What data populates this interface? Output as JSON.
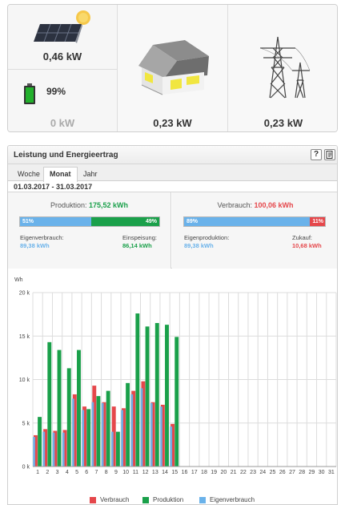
{
  "flow": {
    "pv_power": "0,46 kW",
    "battery_soc": "99%",
    "battery_power": "0 kW",
    "consumption_power": "0,23 kW",
    "grid_power": "0,23 kW",
    "icons": [
      "solar-panel-icon",
      "battery-icon",
      "house-icon",
      "power-pylon-icon"
    ],
    "colors": {
      "battery": "#1fa12a",
      "arrow": "#c9dcb4",
      "house_window": "#f1e640"
    }
  },
  "panel": {
    "title": "Leistung und Energieertrag",
    "help_label": "?",
    "tabs": [
      {
        "label": "Woche",
        "active": false
      },
      {
        "label": "Monat",
        "active": true
      },
      {
        "label": "Jahr",
        "active": false
      }
    ],
    "date_range": "01.03.2017 - 31.03.2017"
  },
  "production": {
    "label": "Produktion:",
    "total": "175,52 kWh",
    "self_pct": "51%",
    "feed_pct": "49%",
    "self_fraction": 0.51,
    "self_label": "Eigenverbrauch:",
    "self_value": "89,38 kWh",
    "feed_label": "Einspeisung:",
    "feed_value": "86,14 kWh"
  },
  "consumption": {
    "label": "Verbrauch:",
    "total": "100,06 kWh",
    "own_pct": "89%",
    "buy_pct": "11%",
    "own_fraction": 0.89,
    "own_label": "Eigenproduktion:",
    "own_value": "89,38 kWh",
    "buy_label": "Zukauf:",
    "buy_value": "10,68 kWh"
  },
  "chart_data": {
    "type": "bar",
    "ylabel": "Wh",
    "ylim": [
      0,
      20000
    ],
    "yticks": [
      0,
      5000,
      10000,
      15000,
      20000
    ],
    "ytick_labels": [
      "0 k",
      "5 k",
      "10 k",
      "15 k",
      "20 k"
    ],
    "categories": [
      "1",
      "2",
      "3",
      "4",
      "5",
      "6",
      "7",
      "8",
      "9",
      "10",
      "11",
      "12",
      "13",
      "14",
      "15",
      "16",
      "17",
      "18",
      "19",
      "20",
      "21",
      "22",
      "23",
      "24",
      "25",
      "26",
      "27",
      "28",
      "29",
      "30",
      "31"
    ],
    "series": [
      {
        "name": "Verbrauch",
        "color": "#e5474b",
        "values": [
          3600,
          4300,
          4100,
          4200,
          8300,
          6900,
          9300,
          7400,
          6900,
          6700,
          8700,
          9800,
          7400,
          7100,
          4900,
          null,
          null,
          null,
          null,
          null,
          null,
          null,
          null,
          null,
          null,
          null,
          null,
          null,
          null,
          null,
          null
        ]
      },
      {
        "name": "Produktion",
        "color": "#1aa04a",
        "values": [
          5700,
          14300,
          13400,
          11300,
          13400,
          6600,
          8100,
          8700,
          4000,
          9600,
          17600,
          16100,
          16500,
          16300,
          14900,
          null,
          null,
          null,
          null,
          null,
          null,
          null,
          null,
          null,
          null,
          null,
          null,
          null,
          null,
          null,
          null
        ]
      },
      {
        "name": "Eigenverbrauch",
        "color": "#6ab2ea",
        "values": [
          3400,
          4000,
          3900,
          3900,
          7800,
          6500,
          7400,
          7300,
          4000,
          6500,
          8300,
          9000,
          7300,
          6900,
          4600,
          null,
          null,
          null,
          null,
          null,
          null,
          null,
          null,
          null,
          null,
          null,
          null,
          null,
          null,
          null,
          null
        ]
      }
    ],
    "legend": [
      "Verbrauch",
      "Produktion",
      "Eigenverbrauch"
    ],
    "legend_position": "bottom",
    "grid": true
  }
}
